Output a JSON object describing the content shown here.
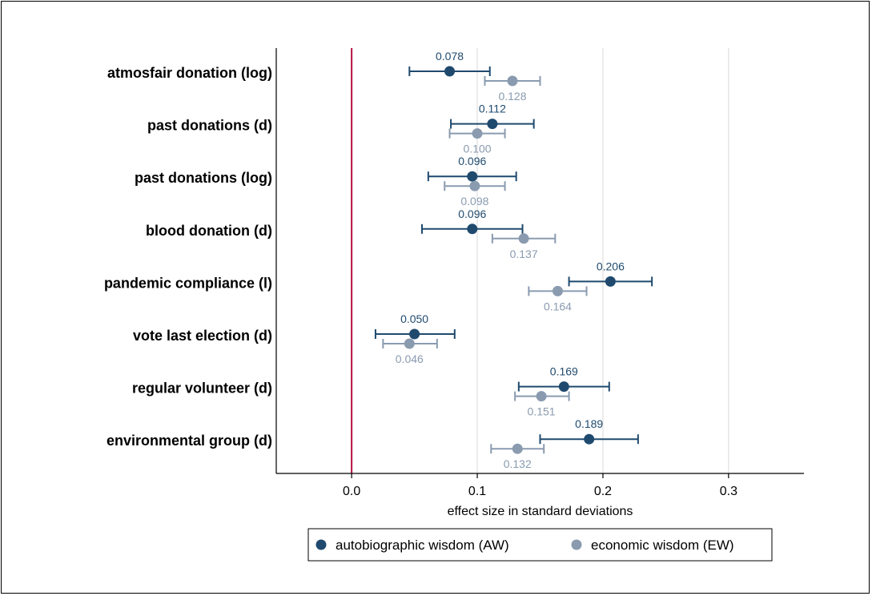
{
  "chart_data": {
    "type": "scatter",
    "subtype": "coefficient-plot-with-ci",
    "orientation": "horizontal",
    "title": "",
    "xlabel": "effect size in standard deviations",
    "ylabel": "",
    "xlim": [
      -0.06,
      0.36
    ],
    "xticks": [
      0.0,
      0.1,
      0.2,
      0.3
    ],
    "xtick_labels": [
      "0.0",
      "0.1",
      "0.2",
      "0.3"
    ],
    "grid": "vertical",
    "reference_line": {
      "x": 0,
      "color": "#b5123f"
    },
    "legend_placement": "bottom",
    "categories": [
      "atmosfair donation (log)",
      "past donations (d)",
      "past donations (log)",
      "blood donation (d)",
      "pandemic compliance (l)",
      "vote last election (d)",
      "regular volunteer (d)",
      "environmental group (d)"
    ],
    "series": [
      {
        "name": "autobiographic wisdom (AW)",
        "color": "#1f4a6e",
        "values": [
          0.078,
          0.112,
          0.096,
          0.096,
          0.206,
          0.05,
          0.169,
          0.189
        ],
        "labels": [
          "0.078",
          "0.112",
          "0.096",
          "0.096",
          "0.206",
          "0.050",
          "0.169",
          "0.189"
        ],
        "ci_low": [
          0.046,
          0.079,
          0.061,
          0.056,
          0.173,
          0.019,
          0.133,
          0.15
        ],
        "ci_high": [
          0.11,
          0.145,
          0.131,
          0.136,
          0.239,
          0.082,
          0.205,
          0.228
        ]
      },
      {
        "name": "economic wisdom (EW)",
        "color": "#8a9bb0",
        "values": [
          0.128,
          0.1,
          0.098,
          0.137,
          0.164,
          0.046,
          0.151,
          0.132
        ],
        "labels": [
          "0.128",
          "0.100",
          "0.098",
          "0.137",
          "0.164",
          "0.046",
          "0.151",
          "0.132"
        ],
        "ci_low": [
          0.106,
          0.078,
          0.074,
          0.112,
          0.141,
          0.025,
          0.13,
          0.111
        ],
        "ci_high": [
          0.15,
          0.122,
          0.122,
          0.162,
          0.187,
          0.068,
          0.173,
          0.153
        ]
      }
    ]
  }
}
